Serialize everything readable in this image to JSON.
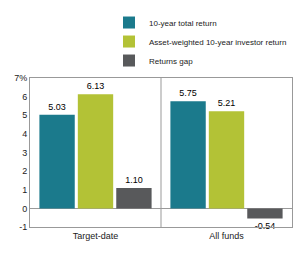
{
  "chart_data": {
    "type": "bar",
    "categories": [
      "Target-date",
      "All funds"
    ],
    "series": [
      {
        "name": "10-year total return",
        "color": "#1b7a8c",
        "values": [
          5.03,
          5.75
        ]
      },
      {
        "name": "Asset-weighted 10-year investor return",
        "color": "#b3c236",
        "values": [
          6.13,
          5.21
        ]
      },
      {
        "name": "Returns gap",
        "color": "#58595b",
        "values": [
          1.1,
          -0.54
        ],
        "value_labels": [
          "1.10",
          "-0.54"
        ]
      }
    ],
    "ylim": [
      -1,
      7
    ],
    "yticks": [
      -1,
      0,
      1,
      2,
      3,
      4,
      5,
      6,
      {
        "value": 7,
        "label": "7%"
      }
    ],
    "grid": false,
    "legend": "top right",
    "data_labels": true
  }
}
